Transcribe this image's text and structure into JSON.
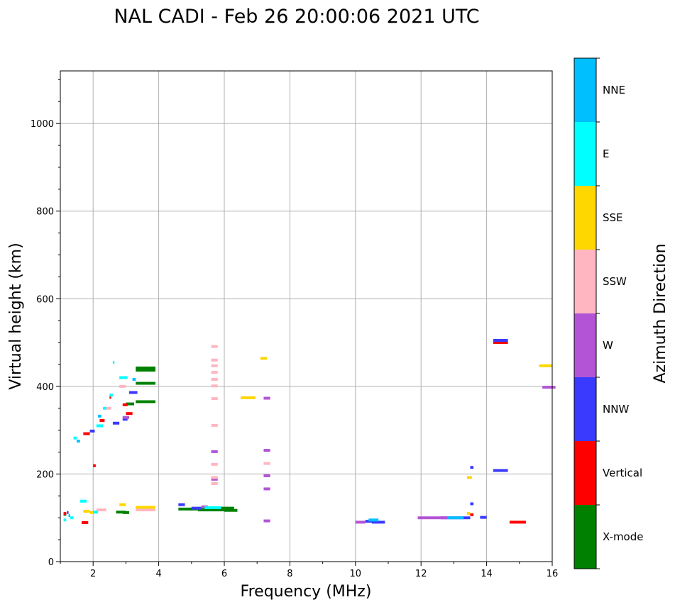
{
  "chart_data": {
    "type": "scatter",
    "title": "NAL CADI - Feb 26 20:00:06 2021 UTC",
    "xlabel": "Frequency (MHz)",
    "ylabel": "Virtual height (km)",
    "xlim": [
      1,
      16
    ],
    "ylim": [
      0,
      1120
    ],
    "xticks": [
      "2",
      "4",
      "6",
      "8",
      "10",
      "12",
      "14",
      "16"
    ],
    "yticks": [
      "0",
      "200",
      "400",
      "600",
      "800",
      "1000"
    ],
    "grid": true,
    "colorbar": {
      "label": "Azimuth Direction",
      "categories": [
        "X-mode",
        "Vertical",
        "NNW",
        "W",
        "SSW",
        "SSE",
        "E",
        "NNE"
      ],
      "colors": {
        "X-mode": "#008000",
        "Vertical": "#ff0000",
        "NNW": "#3a3aff",
        "W": "#b354d6",
        "SSW": "#ffb6c1",
        "SSE": "#ffd700",
        "E": "#00ffff",
        "NNE": "#00bfff"
      }
    },
    "series": [
      {
        "name": "X-mode",
        "points": [
          [
            3.3,
            442,
            0.6
          ],
          [
            3.3,
            437,
            0.6
          ],
          [
            3.3,
            407,
            0.6
          ],
          [
            3.3,
            365,
            0.6
          ],
          [
            3.0,
            360,
            0.25
          ],
          [
            4.6,
            120,
            1.0
          ],
          [
            5.2,
            118,
            0.8
          ],
          [
            5.8,
            122,
            0.5
          ],
          [
            6.0,
            117,
            0.4
          ],
          [
            2.7,
            113,
            0.3
          ],
          [
            2.9,
            112,
            0.2
          ],
          [
            1.1,
            108,
            0.08
          ]
        ]
      },
      {
        "name": "Vertical",
        "points": [
          [
            1.7,
            292,
            0.2
          ],
          [
            2.2,
            322,
            0.15
          ],
          [
            3.0,
            338,
            0.2
          ],
          [
            2.9,
            358,
            0.15
          ],
          [
            2.5,
            375,
            0.05
          ],
          [
            2.0,
            219,
            0.08
          ],
          [
            1.65,
            89,
            0.2
          ],
          [
            14.2,
            500,
            0.45
          ],
          [
            14.7,
            90,
            0.5
          ],
          [
            13.5,
            107,
            0.1
          ],
          [
            1.1,
            110,
            0.08
          ]
        ]
      },
      {
        "name": "NNW",
        "points": [
          [
            1.9,
            298,
            0.15
          ],
          [
            2.6,
            316,
            0.2
          ],
          [
            3.1,
            386,
            0.25
          ],
          [
            2.9,
            325,
            0.15
          ],
          [
            4.6,
            130,
            0.2
          ],
          [
            5.0,
            122,
            0.3
          ],
          [
            10.3,
            92,
            0.3
          ],
          [
            10.5,
            90,
            0.4
          ],
          [
            12.6,
            100,
            0.9
          ],
          [
            13.5,
            132,
            0.1
          ],
          [
            13.5,
            215,
            0.1
          ],
          [
            14.2,
            208,
            0.45
          ],
          [
            14.2,
            505,
            0.45
          ],
          [
            13.8,
            101,
            0.2
          ],
          [
            1.2,
            112,
            0.05
          ]
        ]
      },
      {
        "name": "W",
        "points": [
          [
            2.9,
            329,
            0.2
          ],
          [
            5.6,
            251,
            0.2
          ],
          [
            5.6,
            188,
            0.2
          ],
          [
            7.2,
            373,
            0.2
          ],
          [
            7.2,
            254,
            0.2
          ],
          [
            7.2,
            196,
            0.2
          ],
          [
            7.2,
            166,
            0.2
          ],
          [
            7.2,
            93,
            0.2
          ],
          [
            11.9,
            100,
            0.9
          ],
          [
            15.7,
            398,
            0.4
          ],
          [
            5.3,
            125,
            0.2
          ],
          [
            10.0,
            90,
            0.3
          ]
        ]
      },
      {
        "name": "SSW",
        "points": [
          [
            5.6,
            491,
            0.2
          ],
          [
            5.6,
            460,
            0.2
          ],
          [
            5.6,
            447,
            0.2
          ],
          [
            5.6,
            432,
            0.2
          ],
          [
            5.6,
            416,
            0.2
          ],
          [
            5.6,
            401,
            0.2
          ],
          [
            5.6,
            372,
            0.2
          ],
          [
            5.6,
            311,
            0.2
          ],
          [
            5.6,
            222,
            0.2
          ],
          [
            5.6,
            192,
            0.2
          ],
          [
            5.6,
            178,
            0.2
          ],
          [
            7.2,
            224,
            0.2
          ],
          [
            2.8,
            400,
            0.2
          ],
          [
            2.4,
            350,
            0.15
          ],
          [
            3.3,
            118,
            0.6
          ],
          [
            2.1,
            118,
            0.3
          ]
        ]
      },
      {
        "name": "SSE",
        "points": [
          [
            6.5,
            374,
            0.45
          ],
          [
            7.1,
            464,
            0.2
          ],
          [
            13.4,
            192,
            0.15
          ],
          [
            15.6,
            447,
            0.4
          ],
          [
            3.3,
            124,
            0.6
          ],
          [
            2.8,
            130,
            0.2
          ],
          [
            1.7,
            115,
            0.2
          ],
          [
            1.9,
            112,
            0.1
          ],
          [
            13.4,
            110,
            0.1
          ]
        ]
      },
      {
        "name": "E",
        "points": [
          [
            2.8,
            420,
            0.25
          ],
          [
            2.6,
            455,
            0.05
          ],
          [
            2.3,
            350,
            0.1
          ],
          [
            2.1,
            310,
            0.2
          ],
          [
            1.4,
            282,
            0.1
          ],
          [
            1.6,
            138,
            0.2
          ],
          [
            2.5,
            380,
            0.1
          ],
          [
            5.4,
            123,
            0.5
          ],
          [
            1.3,
            100,
            0.1
          ],
          [
            1.1,
            95,
            0.08
          ],
          [
            2.0,
            113,
            0.15
          ]
        ]
      },
      {
        "name": "NNE",
        "points": [
          [
            3.2,
            416,
            0.1
          ],
          [
            1.5,
            275,
            0.1
          ],
          [
            2.15,
            332,
            0.1
          ],
          [
            10.4,
            95,
            0.3
          ],
          [
            12.8,
            100,
            0.5
          ],
          [
            1.25,
            105,
            0.05
          ]
        ]
      }
    ]
  }
}
